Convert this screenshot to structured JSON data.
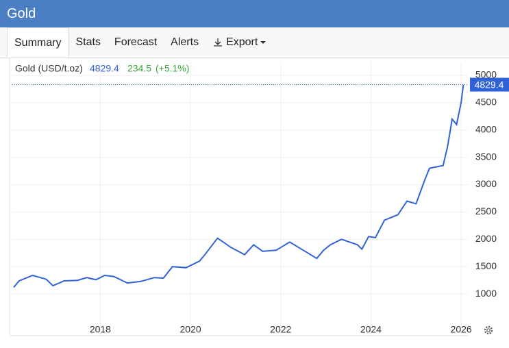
{
  "header": {
    "title": "Gold"
  },
  "tabs": [
    "Summary",
    "Stats",
    "Forecast",
    "Alerts",
    "Export"
  ],
  "chart_data": {
    "type": "line",
    "legend": {
      "label": "Gold (USD/t.oz)",
      "last": 4829.4,
      "change": 234.5,
      "change_pct": "(+5.1%)"
    },
    "series": [
      {
        "name": "Gold (USD/t.oz)",
        "color": "#2f62d8",
        "x": [
          2016.08,
          2016.2,
          2016.5,
          2016.8,
          2016.95,
          2017.2,
          2017.5,
          2017.7,
          2017.9,
          2018.1,
          2018.3,
          2018.6,
          2018.9,
          2019.2,
          2019.4,
          2019.6,
          2019.9,
          2020.2,
          2020.3,
          2020.6,
          2020.9,
          2021.2,
          2021.4,
          2021.6,
          2021.9,
          2022.2,
          2022.5,
          2022.8,
          2022.95,
          2023.1,
          2023.35,
          2023.7,
          2023.8,
          2023.95,
          2024.1,
          2024.3,
          2024.6,
          2024.8,
          2025.0,
          2025.2,
          2025.3,
          2025.6,
          2025.7,
          2025.8,
          2025.9,
          2026.0,
          2026.05
        ],
        "values": [
          1120,
          1240,
          1340,
          1270,
          1150,
          1240,
          1250,
          1300,
          1260,
          1340,
          1320,
          1200,
          1230,
          1300,
          1290,
          1500,
          1480,
          1600,
          1700,
          2020,
          1850,
          1720,
          1900,
          1780,
          1800,
          1950,
          1800,
          1650,
          1800,
          1900,
          2000,
          1900,
          1820,
          2050,
          2030,
          2350,
          2450,
          2700,
          2650,
          3100,
          3300,
          3350,
          3700,
          4200,
          4100,
          4500,
          4829.4
        ]
      }
    ],
    "xlim": [
      2016.05,
      2026.15
    ],
    "xticks": [
      2018,
      2020,
      2022,
      2024,
      2026
    ],
    "ylim": [
      500,
      5250
    ],
    "yticks": [
      1000,
      1500,
      2000,
      2500,
      3000,
      3500,
      4000,
      4500,
      5000
    ],
    "grid": true
  }
}
